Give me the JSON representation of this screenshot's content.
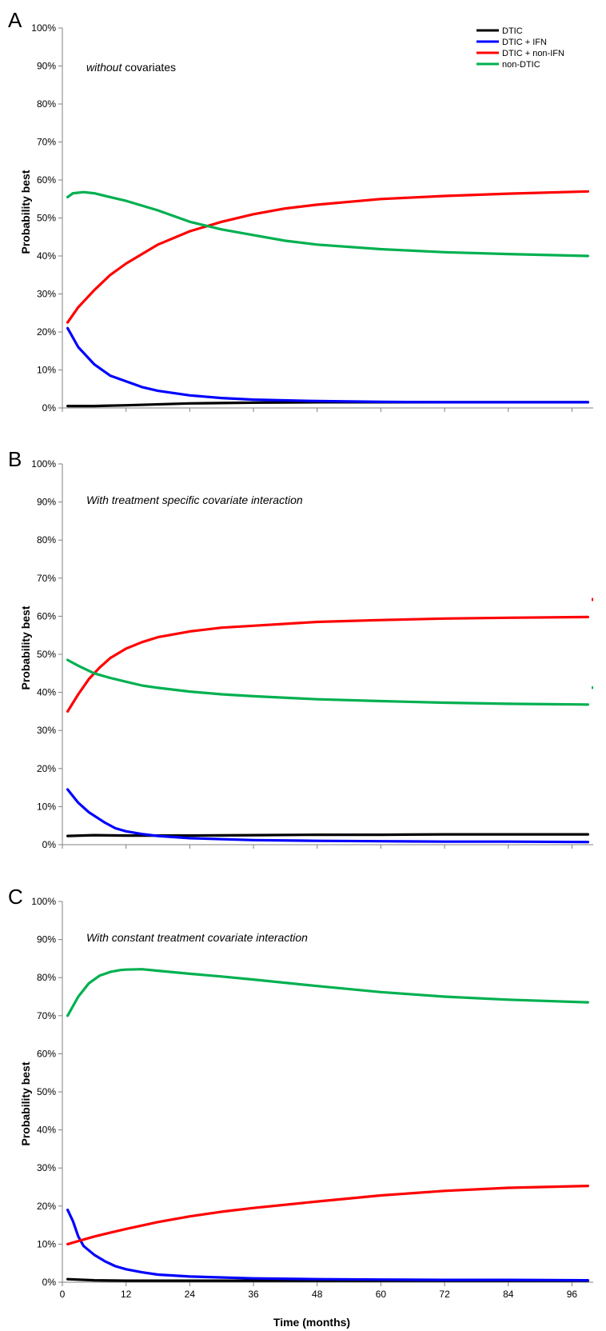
{
  "chart_data": [
    {
      "type": "line",
      "panel": "A",
      "annotation_italic": "without",
      "annotation_rest": " covariates",
      "ylabel": "Probability best",
      "xlabel": "",
      "yticks": [
        "0%",
        "10%",
        "20%",
        "30%",
        "40%",
        "50%",
        "60%",
        "70%",
        "80%",
        "90%",
        "100%"
      ],
      "xticks": [],
      "xlim": [
        0,
        100
      ],
      "ylim": [
        0,
        100
      ],
      "legend": {
        "placement": "top-right"
      },
      "series": [
        {
          "name": "DTIC",
          "color": "#000000",
          "points": [
            [
              1,
              0.5
            ],
            [
              6,
              0.5
            ],
            [
              12,
              0.7
            ],
            [
              24,
              1.2
            ],
            [
              36,
              1.4
            ],
            [
              48,
              1.5
            ],
            [
              60,
              1.5
            ],
            [
              72,
              1.5
            ],
            [
              84,
              1.5
            ],
            [
              99,
              1.5
            ]
          ]
        },
        {
          "name": "DTIC + IFN",
          "color": "#0000ff",
          "points": [
            [
              1,
              21
            ],
            [
              3,
              16
            ],
            [
              6,
              11.5
            ],
            [
              9,
              8.5
            ],
            [
              12,
              7
            ],
            [
              15,
              5.5
            ],
            [
              18,
              4.5
            ],
            [
              24,
              3.3
            ],
            [
              30,
              2.6
            ],
            [
              36,
              2.2
            ],
            [
              48,
              1.8
            ],
            [
              60,
              1.6
            ],
            [
              72,
              1.5
            ],
            [
              84,
              1.5
            ],
            [
              99,
              1.5
            ]
          ]
        },
        {
          "name": "DTIC + non-IFN",
          "color": "#ff0000",
          "points": [
            [
              1,
              22.5
            ],
            [
              3,
              26.5
            ],
            [
              6,
              31
            ],
            [
              9,
              35
            ],
            [
              12,
              38
            ],
            [
              18,
              43
            ],
            [
              24,
              46.5
            ],
            [
              30,
              49
            ],
            [
              36,
              51
            ],
            [
              42,
              52.5
            ],
            [
              48,
              53.5
            ],
            [
              60,
              55
            ],
            [
              72,
              55.8
            ],
            [
              84,
              56.4
            ],
            [
              99,
              57
            ]
          ]
        },
        {
          "name": "non-DTIC",
          "color": "#00b050",
          "points": [
            [
              1,
              55.5
            ],
            [
              2,
              56.5
            ],
            [
              4,
              56.8
            ],
            [
              6,
              56.5
            ],
            [
              9,
              55.5
            ],
            [
              12,
              54.5
            ],
            [
              18,
              52
            ],
            [
              24,
              49
            ],
            [
              30,
              47
            ],
            [
              36,
              45.5
            ],
            [
              42,
              44
            ],
            [
              48,
              43
            ],
            [
              60,
              41.8
            ],
            [
              72,
              41
            ],
            [
              84,
              40.5
            ],
            [
              99,
              40
            ]
          ]
        }
      ]
    },
    {
      "type": "line",
      "panel": "B",
      "annotation": "With treatment specific covariate interaction",
      "ylabel": "Probability best",
      "xlabel": "",
      "yticks": [
        "0%",
        "10%",
        "20%",
        "30%",
        "40%",
        "50%",
        "60%",
        "70%",
        "80%",
        "90%",
        "100%"
      ],
      "xticks": [],
      "xlim": [
        0,
        100
      ],
      "ylim": [
        0,
        100
      ],
      "series": [
        {
          "name": "DTIC",
          "color": "#000000",
          "points": [
            [
              1,
              2.3
            ],
            [
              6,
              2.5
            ],
            [
              12,
              2.4
            ],
            [
              24,
              2.4
            ],
            [
              36,
              2.5
            ],
            [
              48,
              2.6
            ],
            [
              60,
              2.6
            ],
            [
              72,
              2.7
            ],
            [
              84,
              2.7
            ],
            [
              99,
              2.7
            ]
          ]
        },
        {
          "name": "DTIC + IFN",
          "color": "#0000ff",
          "points": [
            [
              1,
              14.5
            ],
            [
              3,
              11
            ],
            [
              5,
              8.5
            ],
            [
              8,
              5.8
            ],
            [
              10,
              4.3
            ],
            [
              12,
              3.5
            ],
            [
              15,
              2.8
            ],
            [
              18,
              2.3
            ],
            [
              24,
              1.7
            ],
            [
              36,
              1.2
            ],
            [
              48,
              1
            ],
            [
              60,
              0.9
            ],
            [
              72,
              0.8
            ],
            [
              84,
              0.8
            ],
            [
              99,
              0.7
            ]
          ]
        },
        {
          "name": "DTIC + non-IFN",
          "color": "#ff0000",
          "points": [
            [
              1,
              35
            ],
            [
              3,
              39.5
            ],
            [
              5,
              43.5
            ],
            [
              7,
              46.5
            ],
            [
              9,
              49
            ],
            [
              12,
              51.5
            ],
            [
              15,
              53.2
            ],
            [
              18,
              54.5
            ],
            [
              24,
              56
            ],
            [
              30,
              57
            ],
            [
              36,
              57.5
            ],
            [
              48,
              58.5
            ],
            [
              60,
              59
            ],
            [
              72,
              59.4
            ],
            [
              84,
              59.6
            ],
            [
              99,
              59.8
            ]
          ]
        },
        {
          "name": "non-DTIC",
          "color": "#00b050",
          "points": [
            [
              1,
              48.5
            ],
            [
              3,
              47
            ],
            [
              6,
              45
            ],
            [
              9,
              43.8
            ],
            [
              12,
              42.8
            ],
            [
              15,
              41.8
            ],
            [
              18,
              41.2
            ],
            [
              24,
              40.2
            ],
            [
              30,
              39.5
            ],
            [
              36,
              39
            ],
            [
              48,
              38.2
            ],
            [
              60,
              37.7
            ],
            [
              72,
              37.3
            ],
            [
              84,
              37
            ],
            [
              99,
              36.8
            ]
          ]
        }
      ]
    },
    {
      "type": "line",
      "panel": "C",
      "annotation": "With constant treatment covariate interaction",
      "ylabel": "Probability best",
      "xlabel": "Time (months)",
      "yticks": [
        "0%",
        "10%",
        "20%",
        "30%",
        "40%",
        "50%",
        "60%",
        "70%",
        "80%",
        "90%",
        "100%"
      ],
      "xticks": [
        "0",
        "12",
        "24",
        "36",
        "48",
        "60",
        "72",
        "84",
        "96"
      ],
      "xlim": [
        0,
        100
      ],
      "ylim": [
        0,
        100
      ],
      "series": [
        {
          "name": "DTIC",
          "color": "#000000",
          "points": [
            [
              1,
              0.8
            ],
            [
              6,
              0.5
            ],
            [
              12,
              0.4
            ],
            [
              24,
              0.4
            ],
            [
              36,
              0.4
            ],
            [
              48,
              0.4
            ],
            [
              60,
              0.4
            ],
            [
              72,
              0.4
            ],
            [
              84,
              0.4
            ],
            [
              99,
              0.4
            ]
          ]
        },
        {
          "name": "DTIC + IFN",
          "color": "#0000ff",
          "points": [
            [
              1,
              19
            ],
            [
              2,
              16
            ],
            [
              3,
              12
            ],
            [
              4,
              9.5
            ],
            [
              6,
              7.2
            ],
            [
              8,
              5.5
            ],
            [
              10,
              4.2
            ],
            [
              12,
              3.4
            ],
            [
              15,
              2.6
            ],
            [
              18,
              2
            ],
            [
              24,
              1.5
            ],
            [
              36,
              1
            ],
            [
              48,
              0.8
            ],
            [
              60,
              0.7
            ],
            [
              72,
              0.6
            ],
            [
              84,
              0.6
            ],
            [
              99,
              0.5
            ]
          ]
        },
        {
          "name": "DTIC + non-IFN",
          "color": "#ff0000",
          "points": [
            [
              1,
              10
            ],
            [
              3,
              10.8
            ],
            [
              6,
              12
            ],
            [
              9,
              13
            ],
            [
              12,
              14
            ],
            [
              18,
              15.8
            ],
            [
              24,
              17.3
            ],
            [
              30,
              18.5
            ],
            [
              36,
              19.5
            ],
            [
              48,
              21.2
            ],
            [
              60,
              22.8
            ],
            [
              72,
              24
            ],
            [
              84,
              24.8
            ],
            [
              99,
              25.3
            ]
          ]
        },
        {
          "name": "non-DTIC",
          "color": "#00b050",
          "points": [
            [
              1,
              70
            ],
            [
              3,
              75
            ],
            [
              5,
              78.5
            ],
            [
              7,
              80.5
            ],
            [
              9,
              81.5
            ],
            [
              11,
              82
            ],
            [
              12,
              82.1
            ],
            [
              15,
              82.2
            ],
            [
              18,
              81.8
            ],
            [
              24,
              81
            ],
            [
              30,
              80.3
            ],
            [
              36,
              79.5
            ],
            [
              48,
              77.8
            ],
            [
              60,
              76.2
            ],
            [
              72,
              75
            ],
            [
              84,
              74.2
            ],
            [
              99,
              73.5
            ]
          ]
        }
      ]
    }
  ]
}
